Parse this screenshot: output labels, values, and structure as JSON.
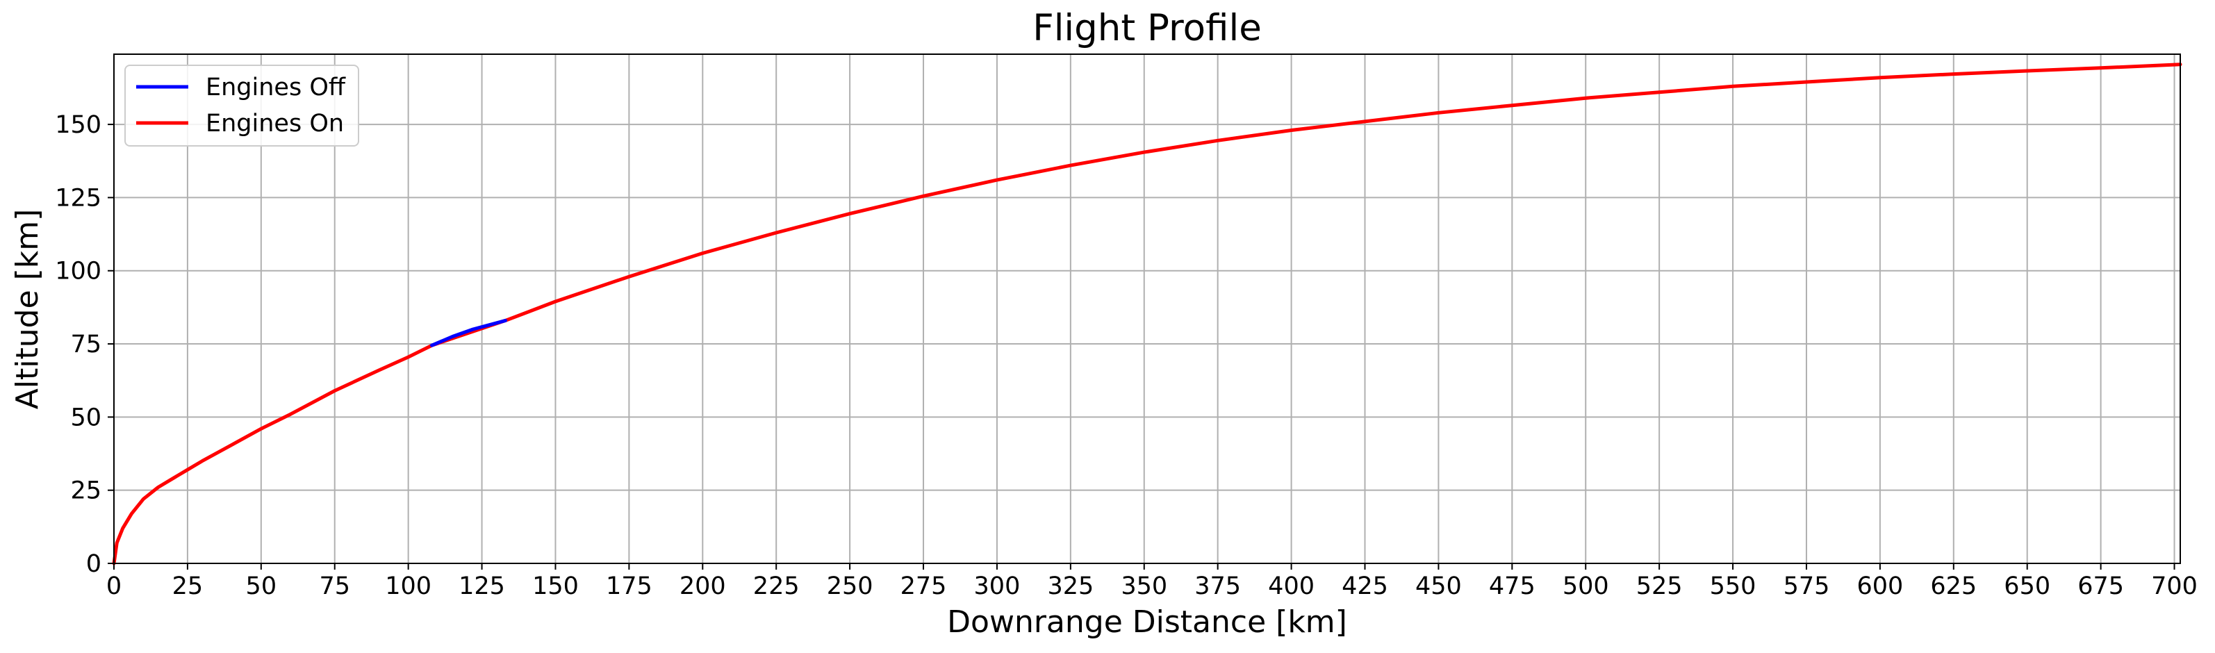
{
  "chart_data": {
    "type": "line",
    "title": "Flight Profile",
    "xlabel": "Downrange Distance [km]",
    "ylabel": "Altitude [km]",
    "xlim": [
      0,
      702
    ],
    "ylim": [
      0,
      174
    ],
    "xticks": [
      0,
      25,
      50,
      75,
      100,
      125,
      150,
      175,
      200,
      225,
      250,
      275,
      300,
      325,
      350,
      375,
      400,
      425,
      450,
      475,
      500,
      525,
      550,
      575,
      600,
      625,
      650,
      675,
      700
    ],
    "yticks": [
      0,
      25,
      50,
      75,
      100,
      125,
      150
    ],
    "grid": true,
    "legend_position": "top-left",
    "series": [
      {
        "name": "Engines Off",
        "color": "#0000ff",
        "x": [
          108,
          115,
          122,
          133
        ],
        "y": [
          74.5,
          77.5,
          80,
          83
        ]
      },
      {
        "name": "Engines On",
        "color": "#ff0000",
        "x": [
          0,
          1,
          3,
          6,
          10,
          15,
          20,
          25,
          30,
          40,
          50,
          60,
          75,
          90,
          100,
          108,
          133,
          150,
          175,
          200,
          225,
          250,
          275,
          300,
          325,
          350,
          375,
          400,
          425,
          450,
          475,
          500,
          525,
          550,
          575,
          600,
          625,
          650,
          675,
          702
        ],
        "y": [
          0,
          7,
          12,
          17,
          22,
          26,
          29,
          32,
          35,
          40.5,
          46,
          51,
          59,
          66,
          70.5,
          74.5,
          83,
          89.5,
          98,
          106,
          113,
          119.5,
          125.5,
          131,
          136,
          140.5,
          144.5,
          148,
          151,
          154,
          156.5,
          159,
          161,
          163,
          164.5,
          166,
          167.2,
          168.3,
          169.3,
          170.5
        ]
      }
    ]
  }
}
